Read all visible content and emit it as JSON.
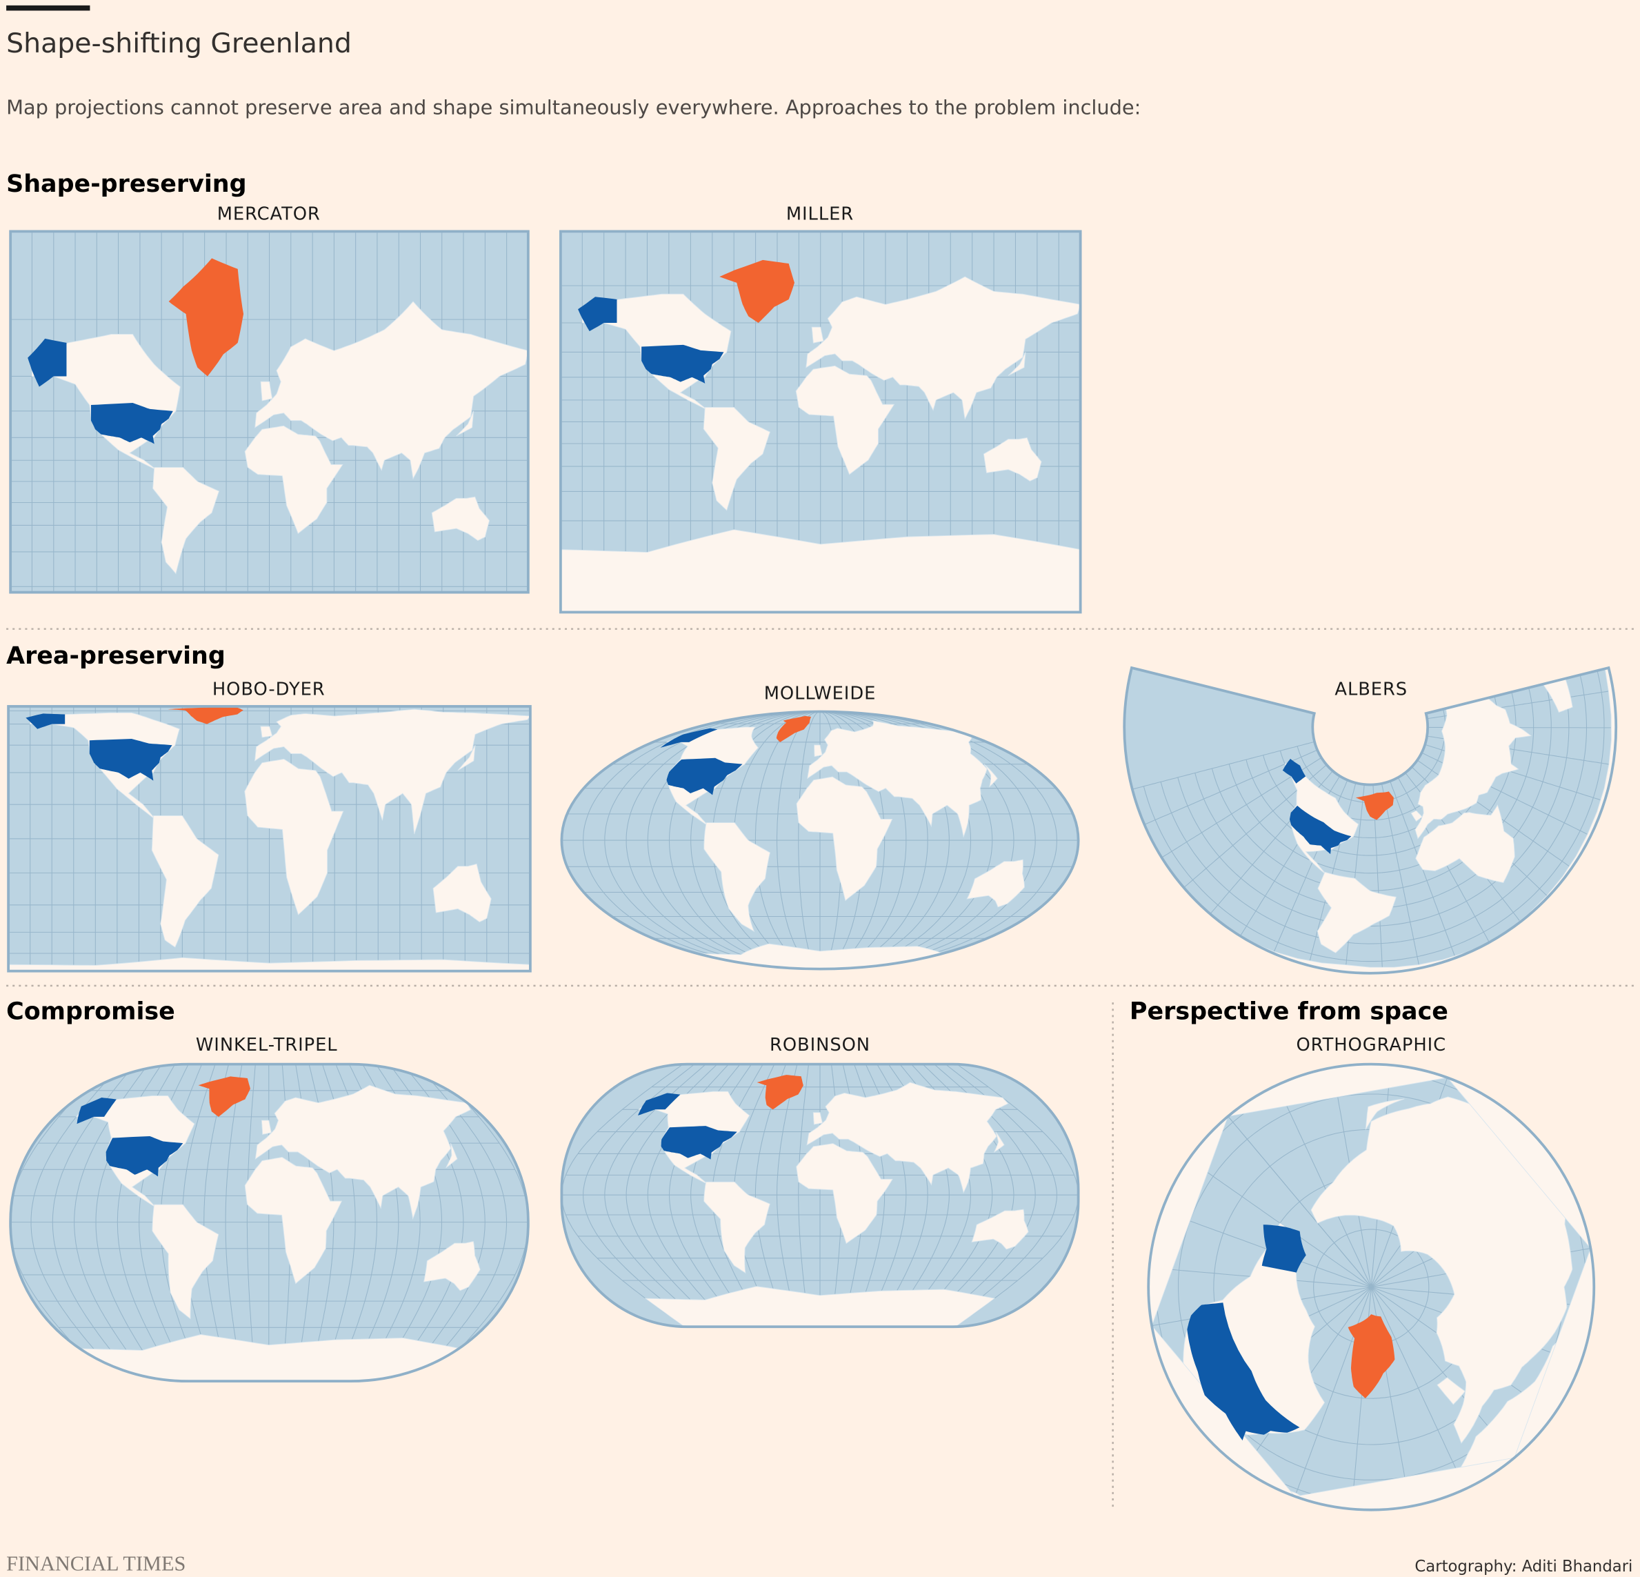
{
  "header": {
    "title": "Shape-shifting Greenland",
    "subtitle": "Map projections cannot preserve area and shape simultaneously everywhere. Approaches to the problem include:"
  },
  "sections": [
    {
      "title": "Shape-preserving",
      "maps": [
        "MERCATOR",
        "MILLER"
      ]
    },
    {
      "title": "Area-preserving",
      "maps": [
        "HOBO-DYER",
        "MOLLWEIDE",
        "ALBERS"
      ]
    },
    {
      "title": "Compromise",
      "maps": [
        "WINKEL-TRIPEL",
        "ROBINSON"
      ]
    },
    {
      "title": "Perspective from space",
      "maps": [
        "ORTHOGRAPHIC"
      ]
    }
  ],
  "footer": {
    "source": "FINANCIAL TIMES",
    "credit": "Cartography: Aditi Bhandari"
  }
}
